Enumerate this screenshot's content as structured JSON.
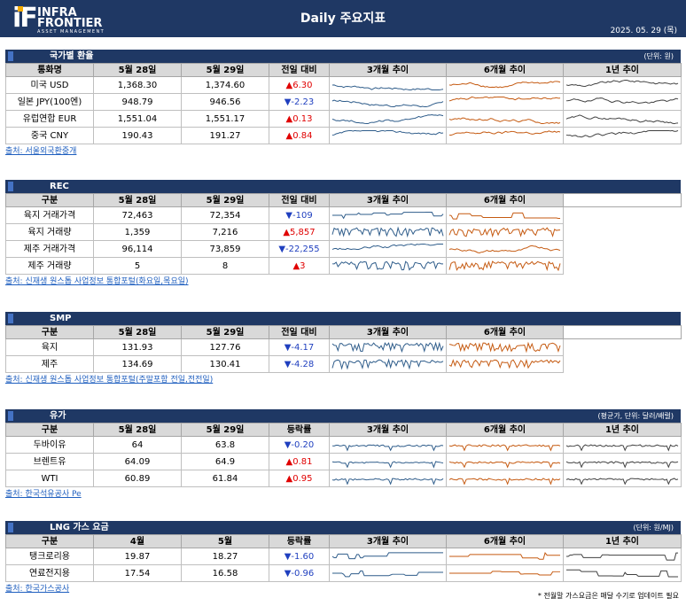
{
  "header": {
    "logo_mark": "iF",
    "logo_line1": "INFRA",
    "logo_line2": "FRONTIER",
    "logo_sub": "ASSET MANAGEMENT",
    "title": "Daily 주요지표",
    "date": "2025. 05. 29 (목)"
  },
  "colors": {
    "header_bg": "#1f3864",
    "up": "#e00000",
    "down": "#1f3fbf",
    "line_3m": "#2e5c8a",
    "line_6m": "#c55a11",
    "line_1y": "#404040"
  },
  "sections": [
    {
      "title": "국가별 환율",
      "unit": "(단위: 원)",
      "columns": [
        "통화명",
        "5월 28일",
        "5월 29일",
        "전일 대비",
        "3개월 추이",
        "6개월 추이",
        "1년 추이"
      ],
      "rows": [
        {
          "name": "미국 USD",
          "v1": "1,368.30",
          "v2": "1,374.60",
          "dir": "up",
          "chg": "▲6.30"
        },
        {
          "name": "일본 JPY(100엔)",
          "v1": "948.79",
          "v2": "946.56",
          "dir": "down",
          "chg": "▼-2.23"
        },
        {
          "name": "유럽연합 EUR",
          "v1": "1,551.04",
          "v2": "1,551.17",
          "dir": "up",
          "chg": "▲0.13"
        },
        {
          "name": "중국 CNY",
          "v1": "190.43",
          "v2": "191.27",
          "dir": "up",
          "chg": "▲0.84"
        }
      ],
      "source": "출처: 서울외국환중개"
    },
    {
      "title": "REC",
      "unit": "",
      "columns": [
        "구분",
        "5월 28일",
        "5월 29일",
        "전일 대비",
        "3개월 추이",
        "6개월 추이",
        ""
      ],
      "rows": [
        {
          "name": "육지 거래가격",
          "v1": "72,463",
          "v2": "72,354",
          "dir": "down",
          "chg": "▼-109"
        },
        {
          "name": "육지 거래량",
          "v1": "1,359",
          "v2": "7,216",
          "dir": "up",
          "chg": "▲5,857"
        },
        {
          "name": "제주 거래가격",
          "v1": "96,114",
          "v2": "73,859",
          "dir": "down",
          "chg": "▼-22,255"
        },
        {
          "name": "제주 거래량",
          "v1": "5",
          "v2": "8",
          "dir": "up",
          "chg": "▲3"
        }
      ],
      "source": "출처: 신재생 원스톱 사업정보 통합포털(화요일,목요일)"
    },
    {
      "title": "SMP",
      "unit": "",
      "columns": [
        "구분",
        "5월 28일",
        "5월 29일",
        "전일 대비",
        "3개월 추이",
        "6개월 추이",
        ""
      ],
      "rows": [
        {
          "name": "육지",
          "v1": "131.93",
          "v2": "127.76",
          "dir": "down",
          "chg": "▼-4.17"
        },
        {
          "name": "제주",
          "v1": "134.69",
          "v2": "130.41",
          "dir": "down",
          "chg": "▼-4.28"
        }
      ],
      "source": "출처: 신재생 원스톱 사업정보 통합포털(주말포함 전일,전전일)"
    },
    {
      "title": "유가",
      "unit": "(평균가, 단위: 달러/배럴)",
      "columns": [
        "구분",
        "5월 28일",
        "5월 29일",
        "등락률",
        "3개월 추이",
        "6개월 추이",
        "1년 추이"
      ],
      "rows": [
        {
          "name": "두바이유",
          "v1": "64",
          "v2": "63.8",
          "dir": "down",
          "chg": "▼-0.20"
        },
        {
          "name": "브렌트유",
          "v1": "64.09",
          "v2": "64.9",
          "dir": "up",
          "chg": "▲0.81"
        },
        {
          "name": "WTI",
          "v1": "60.89",
          "v2": "61.84",
          "dir": "up",
          "chg": "▲0.95"
        }
      ],
      "source": "출처: 한국석유공사 Pe"
    },
    {
      "title": "LNG 가스 요금",
      "unit": "(단위: 원/MJ)",
      "columns": [
        "구분",
        "4월",
        "5월",
        "등락률",
        "3개월 추이",
        "6개월 추이",
        "1년 추이"
      ],
      "rows": [
        {
          "name": "탱크로리용",
          "v1": "19.87",
          "v2": "18.27",
          "dir": "down",
          "chg": "▼-1.60"
        },
        {
          "name": "연료전지용",
          "v1": "17.54",
          "v2": "16.58",
          "dir": "down",
          "chg": "▼-0.96"
        }
      ],
      "source": "출처: 한국가스공사"
    }
  ],
  "footnote": "* 전월말 가스요금은 매달 수기로 업데이트 필요"
}
